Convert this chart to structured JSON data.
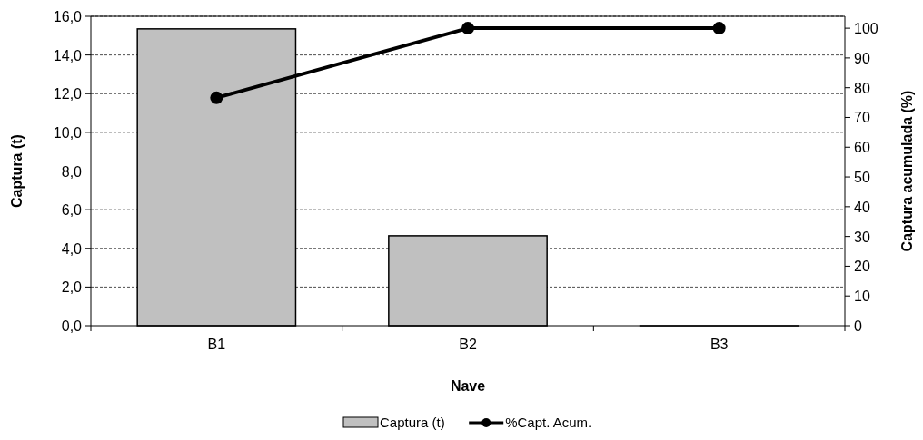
{
  "chart_data": {
    "type": "bar",
    "xlabel": "Nave",
    "ylabel": "Captura (t)",
    "y2label": "Captura acumulada (%)",
    "categories": [
      "B1",
      "B2",
      "B3"
    ],
    "series": [
      {
        "name": "Captura (t)",
        "color": "#c0c0c0",
        "values": [
          15.35,
          4.65,
          0
        ]
      },
      {
        "name": "%Capt. Acum.",
        "type": "line",
        "axis": "y2",
        "color": "#000000",
        "values": [
          76.6,
          100,
          100
        ],
        "marker": "circle"
      }
    ],
    "ylim": [
      0,
      16
    ],
    "yticks": [
      {
        "value": 0,
        "label": "0,0"
      },
      {
        "value": 2,
        "label": "2,0"
      },
      {
        "value": 4,
        "label": "4,0"
      },
      {
        "value": 6,
        "label": "6,0"
      },
      {
        "value": 8,
        "label": "8,0"
      },
      {
        "value": 10,
        "label": "10,0"
      },
      {
        "value": 12,
        "label": "12,0"
      },
      {
        "value": 14,
        "label": "14,0"
      },
      {
        "value": 16,
        "label": "16,0"
      }
    ],
    "y2lim": [
      0,
      104
    ],
    "y2ticks": [
      0,
      10,
      20,
      30,
      40,
      50,
      60,
      70,
      80,
      90,
      100
    ],
    "grid": "y",
    "legend": "bottom"
  }
}
